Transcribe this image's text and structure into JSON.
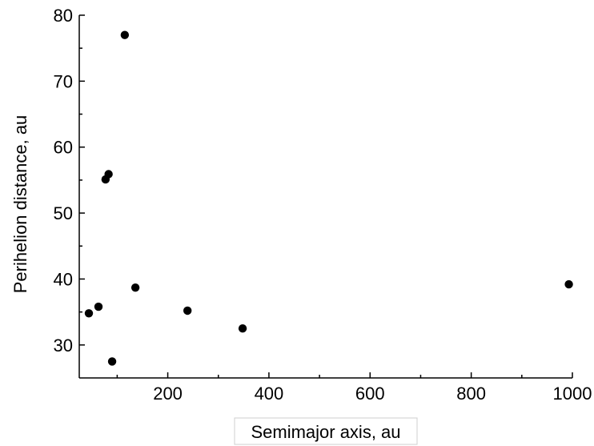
{
  "chart_data": {
    "type": "scatter",
    "title": "",
    "xlabel": "Semimajor axis, au",
    "ylabel": "Perihelion distance, au",
    "xlim": [
      25,
      1000
    ],
    "ylim": [
      25,
      80
    ],
    "x_ticks": [
      200,
      400,
      600,
      800,
      1000
    ],
    "x_tick_labels": [
      "200",
      "400",
      "600",
      "800",
      "1000"
    ],
    "y_ticks": [
      30,
      40,
      50,
      60,
      70,
      80
    ],
    "y_tick_labels": [
      "30",
      "40",
      "50",
      "60",
      "70",
      "80"
    ],
    "grid": false,
    "legend": "none",
    "marker_color": "#000000",
    "points": [
      {
        "x": 44,
        "y": 34.8
      },
      {
        "x": 63,
        "y": 35.8
      },
      {
        "x": 77,
        "y": 55.1
      },
      {
        "x": 83,
        "y": 55.9
      },
      {
        "x": 90,
        "y": 27.5
      },
      {
        "x": 115,
        "y": 77.0
      },
      {
        "x": 136,
        "y": 38.7
      },
      {
        "x": 239,
        "y": 35.2
      },
      {
        "x": 348,
        "y": 32.5
      },
      {
        "x": 993,
        "y": 39.2
      }
    ]
  }
}
